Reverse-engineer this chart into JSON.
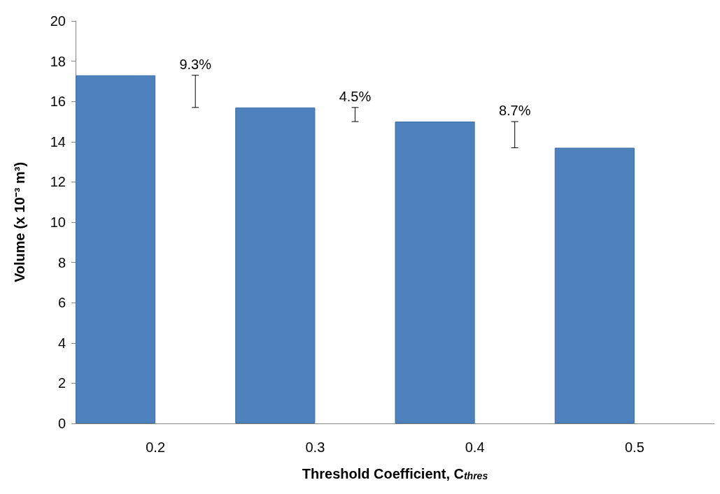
{
  "chart_data": {
    "type": "bar",
    "xlabel": "Threshold Coefficient, C$_{thres}$",
    "ylabel": "Volume (x 10⁻³ m³)",
    "categories": [
      "0.2",
      "0.3",
      "0.4",
      "0.5"
    ],
    "values": [
      17.3,
      15.7,
      15.0,
      13.7
    ],
    "color": "#4f81bd",
    "annotations": [
      {
        "text": "9.3%",
        "x": "0.2",
        "y": 17.3
      },
      {
        "text": "4.5%",
        "x": "0.3",
        "y": 15.7
      },
      {
        "text": "8.7%",
        "x": "0.4",
        "y": 15.0
      }
    ],
    "ylim": [
      0,
      20
    ],
    "yticks": [
      0,
      2,
      4,
      6,
      8,
      10,
      12,
      14,
      16,
      18,
      20
    ],
    "grid": false
  }
}
